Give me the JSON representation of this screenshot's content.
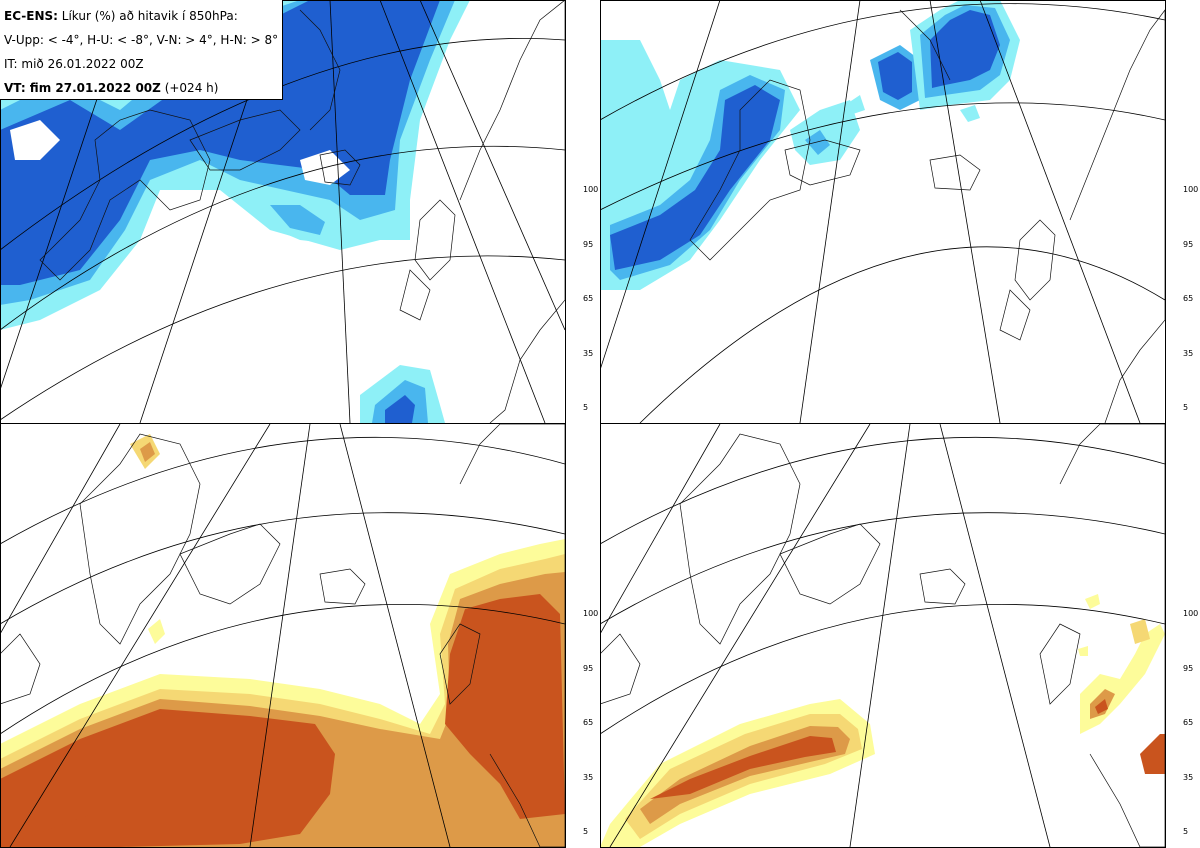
{
  "legend": {
    "line1_bold": "EC-ENS:",
    "line1_text": " Líkur (%) að hitavik í 850hPa:",
    "line2": "V-Upp: < -4°, H-U: < -8°, V-N: > 4°, H-N: > 8°",
    "line3": "IT: mið 26.01.2022 00Z",
    "line4_bold": "VT: fim 27.01.2022 00Z",
    "line4_text": " (+024 h)"
  },
  "colorbar": {
    "labels": [
      "100",
      "95",
      "65",
      "35",
      "5"
    ],
    "cold_colors": [
      "#1f5fd0",
      "#3d84e0",
      "#49b6ee",
      "#7fe8f5",
      "#c8fbfd"
    ],
    "warm_colors": [
      "#c9541e",
      "#d98a3a",
      "#ecc45a",
      "#f7ec7c",
      "#fdfcb8"
    ]
  },
  "panels": [
    {
      "id": "V-Upp",
      "palette": "cold"
    },
    {
      "id": "H-U",
      "palette": "cold"
    },
    {
      "id": "V-N",
      "palette": "warm"
    },
    {
      "id": "H-N",
      "palette": "warm"
    }
  ]
}
